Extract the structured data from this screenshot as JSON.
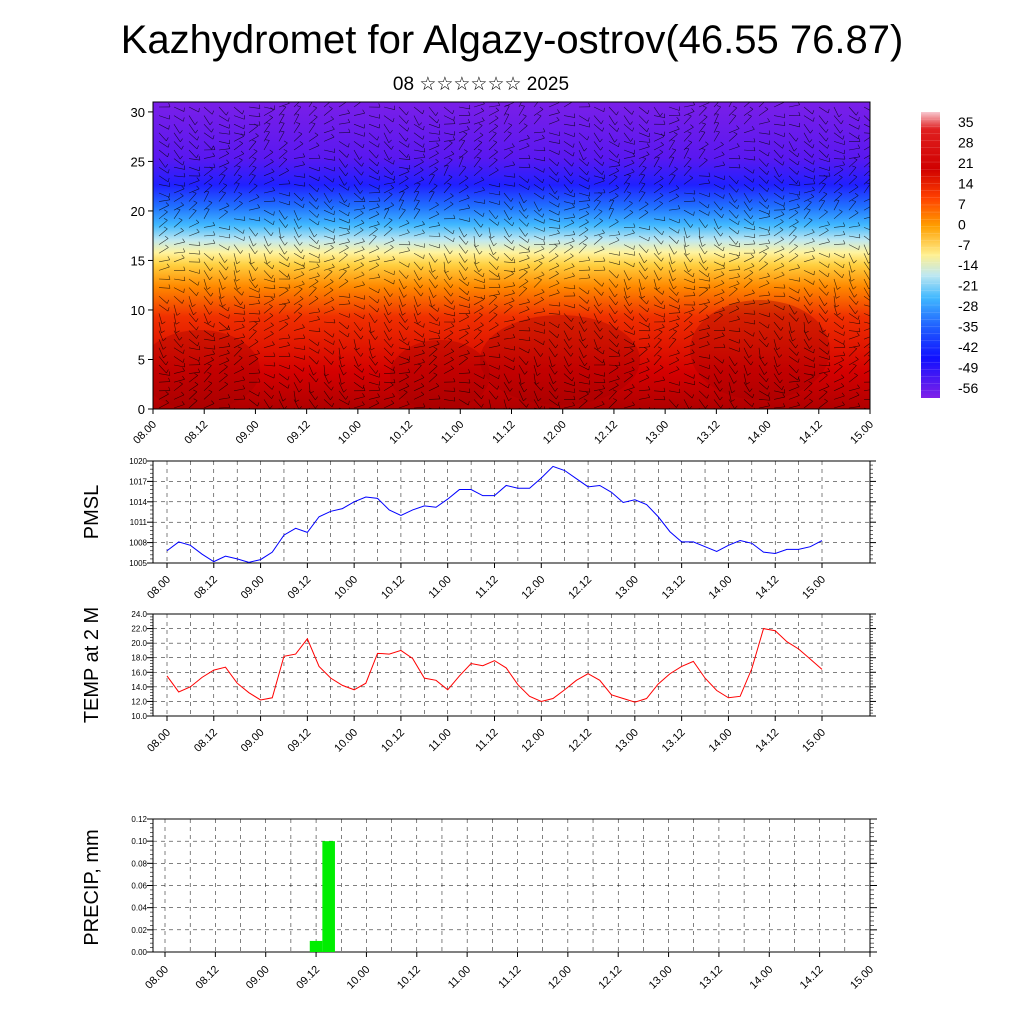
{
  "title": "Kazhydromet for Algazy-ostrov(46.55 76.87)",
  "subtitle": "08 ☆☆☆☆☆☆ 2025",
  "chart_data": [
    {
      "type": "heatmap",
      "description_variable": "temperature cross-section with wind barbs",
      "xticklabels": [
        "08.00",
        "08.12",
        "09.00",
        "09.12",
        "10.00",
        "10.12",
        "11.00",
        "11.12",
        "12.00",
        "12.12",
        "13.00",
        "13.12",
        "14.00",
        "14.12",
        "15.00"
      ],
      "yticks": [
        0,
        5,
        10,
        15,
        20,
        25,
        30
      ],
      "ylim": [
        0,
        31
      ],
      "colorbar_labels": [
        "35",
        "28",
        "21",
        "14",
        "7",
        "0",
        "-7",
        "-14",
        "-21",
        "-28",
        "-35",
        "-42",
        "-49",
        "-56"
      ],
      "colors": {
        "cold": "#7a1fe8",
        "mid": "#ffef8a",
        "warm": "#d40000"
      }
    },
    {
      "type": "line",
      "ylabel": "PMSL",
      "ylim": [
        1005,
        1020
      ],
      "yticklabels": [
        "1005",
        "1008",
        "1011",
        "1014",
        "1017",
        "1020"
      ],
      "xticklabels": [
        "08.00",
        "08.12",
        "09.00",
        "09.12",
        "10.00",
        "10.12",
        "11.00",
        "11.12",
        "12.00",
        "12.12",
        "13.00",
        "13.12",
        "14.00",
        "14.12",
        "15.00"
      ],
      "series_color": "#0000ff",
      "values": [
        1006.8,
        1008.1,
        1007.6,
        1006.3,
        1005.2,
        1006.0,
        1005.6,
        1005.1,
        1005.5,
        1006.6,
        1009.1,
        1010.1,
        1009.5,
        1011.8,
        1012.6,
        1013.0,
        1014.0,
        1014.7,
        1014.5,
        1012.8,
        1012.0,
        1012.8,
        1013.4,
        1013.2,
        1014.4,
        1015.8,
        1015.8,
        1014.9,
        1014.9,
        1016.4,
        1016.0,
        1016.0,
        1017.5,
        1019.2,
        1018.6,
        1017.4,
        1016.2,
        1016.4,
        1015.4,
        1013.9,
        1014.3,
        1013.6,
        1011.8,
        1009.6,
        1008.1,
        1008.1,
        1007.4,
        1006.7,
        1007.6,
        1008.3,
        1007.9,
        1006.6,
        1006.4,
        1007.0,
        1007.0,
        1007.4,
        1008.3
      ]
    },
    {
      "type": "line",
      "ylabel": "TEMP at 2 M",
      "ylim": [
        10,
        24
      ],
      "yticklabels": [
        "10.0",
        "12.0",
        "14.0",
        "16.0",
        "18.0",
        "20.0",
        "22.0",
        "24.0"
      ],
      "xticklabels": [
        "08.00",
        "08.12",
        "09.00",
        "09.12",
        "10.00",
        "10.12",
        "11.00",
        "11.12",
        "12.00",
        "12.12",
        "13.00",
        "13.12",
        "14.00",
        "14.12",
        "15.00"
      ],
      "series_color": "#ff0000",
      "values": [
        15.5,
        13.3,
        14.0,
        15.3,
        16.3,
        16.7,
        14.5,
        13.2,
        12.2,
        12.5,
        18.2,
        18.5,
        20.6,
        16.8,
        15.2,
        14.2,
        13.6,
        14.5,
        18.6,
        18.5,
        19.0,
        17.9,
        15.2,
        14.9,
        13.6,
        15.5,
        17.2,
        16.9,
        17.6,
        16.6,
        14.3,
        12.7,
        12.0,
        12.4,
        13.6,
        14.9,
        15.8,
        14.9,
        12.9,
        12.4,
        11.9,
        12.4,
        14.4,
        15.8,
        16.8,
        17.5,
        15.2,
        13.5,
        12.5,
        12.7,
        16.5,
        22.0,
        21.7,
        20.2,
        19.2,
        17.8,
        16.4
      ]
    },
    {
      "type": "bar",
      "ylabel": "PRECIP, mm",
      "ylim": [
        0,
        0.12
      ],
      "yticklabels": [
        "0.00",
        "0.02",
        "0.04",
        "0.06",
        "0.08",
        "0.10",
        "0.12"
      ],
      "xticklabels": [
        "08.00",
        "08.12",
        "09.00",
        "09.12",
        "10.00",
        "10.12",
        "11.00",
        "11.12",
        "12.00",
        "12.12",
        "13.00",
        "13.12",
        "14.00",
        "14.12",
        "15.00"
      ],
      "series_color": "#00ee00",
      "bars": [
        {
          "x": 12,
          "value": 0.01
        },
        {
          "x": 13,
          "value": 0.1
        }
      ]
    }
  ]
}
